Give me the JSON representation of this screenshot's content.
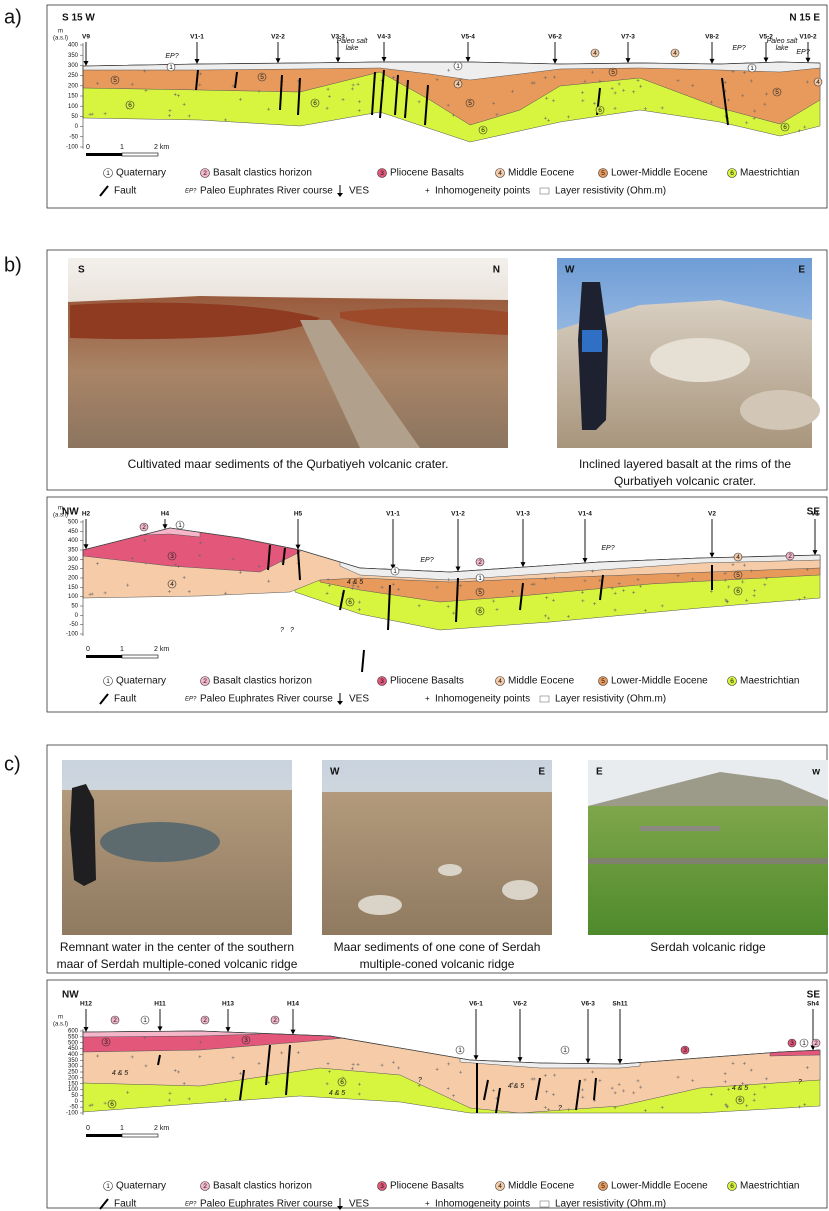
{
  "panel_labels": [
    "a)",
    "b)",
    "c)"
  ],
  "section_a": {
    "direction_left": "S 15 W",
    "direction_right": "N 15 E",
    "axis_unit": [
      "m",
      "(a.s.l)"
    ],
    "yticks": [
      400,
      350,
      300,
      250,
      200,
      150,
      100,
      50,
      0,
      -50,
      -100
    ],
    "stations": [
      "V9",
      "V1-1",
      "V2-2",
      "V3-3",
      "V4-3",
      "V5-4",
      "V6-2",
      "V7-3",
      "V8-2",
      "V5-2",
      "V10-2"
    ],
    "annotations": [
      "EP?",
      "Paleo salt",
      "lake",
      "EP?",
      "Paleo salt",
      "lake",
      "EP?"
    ],
    "layer_marks": [
      "1",
      "5",
      "6",
      "5",
      "6",
      "1",
      "4",
      "5",
      "6",
      "4",
      "5",
      "6",
      "4",
      "1",
      "5",
      "6",
      "4"
    ],
    "scale": [
      "0",
      "1",
      "2 km"
    ]
  },
  "photos_b": {
    "photo_1": {
      "direction_left": "S",
      "direction_right": "N",
      "caption": [
        "Cultivated maar sediments of the Qurbatiyeh volcanic crater."
      ]
    },
    "photo_2": {
      "direction_left": "W",
      "direction_right": "E",
      "caption": [
        "Inclined layered basalt at the rims of the",
        "Qurbatiyeh volcanic crater."
      ]
    }
  },
  "section_b": {
    "direction_left": "NW",
    "direction_right": "SE",
    "axis_unit": [
      "m",
      "(a.s.l)"
    ],
    "yticks": [
      500,
      450,
      400,
      350,
      300,
      250,
      200,
      150,
      100,
      50,
      0,
      -50,
      -100
    ],
    "stations": [
      "H2",
      "H4",
      "H5",
      "V1-1",
      "V1-2",
      "V1-3",
      "V1-4",
      "V2",
      "V1"
    ],
    "annotations": [
      "EP?",
      "EP?",
      "?",
      "?",
      "4 & 5"
    ],
    "layer_marks": [
      "2",
      "1",
      "3",
      "4",
      "6",
      "1",
      "2",
      "1",
      "5",
      "6",
      "4",
      "5",
      "6",
      "2"
    ],
    "scale": [
      "0",
      "1",
      "2 km"
    ]
  },
  "photos_c": {
    "photo_1": {
      "caption": [
        "Remnant water in the center of the southern",
        "maar of Serdah multiple-coned volcanic ridge"
      ]
    },
    "photo_2": {
      "direction_left": "W",
      "direction_right": "E",
      "caption": [
        "Maar sediments of one cone of Serdah",
        "multiple-coned volcanic ridge"
      ]
    },
    "photo_3": {
      "direction_left": "E",
      "direction_right": "w",
      "caption": [
        "Serdah volcanic ridge"
      ]
    }
  },
  "section_c": {
    "direction_left": "NW",
    "direction_right": "SE",
    "axis_unit": [
      "m",
      "(a.s.l)"
    ],
    "yticks": [
      600,
      550,
      500,
      450,
      400,
      350,
      300,
      250,
      200,
      150,
      100,
      50,
      0,
      -50,
      -100
    ],
    "stations": [
      "H12",
      "H11",
      "H13",
      "H14",
      "V6-1",
      "V6-2",
      "V6-3",
      "Sh11",
      "Sh4"
    ],
    "annotations": [
      "4 & 5",
      "4 & 5",
      "4 & 5",
      "4 & 5",
      "?",
      "?",
      "?"
    ],
    "layer_marks": [
      "2",
      "1",
      "2",
      "2",
      "3",
      "3",
      "6",
      "6",
      "1",
      "1",
      "3",
      "6",
      "3",
      "1",
      "2"
    ],
    "scale": [
      "0",
      "1",
      "2 km"
    ]
  },
  "legend": {
    "items": [
      {
        "number": "1",
        "text": "Quaternary"
      },
      {
        "number": "2",
        "text": "Basalt clastics horizon"
      },
      {
        "number": "3",
        "text": "Pliocene Basalts"
      },
      {
        "number": "4",
        "text": "Middle Eocene"
      },
      {
        "number": "5",
        "text": "Lower-Middle Eocene"
      },
      {
        "number": "6",
        "text": "Maestrichtian"
      }
    ],
    "fault": "Fault",
    "ep_symbol": "EP?",
    "ep": "Paleo Euphrates River course",
    "ves": "VES",
    "inhomogeneity": "Inhomogeneity points",
    "resistivity": "Layer resistivity (Ohm.m)"
  }
}
